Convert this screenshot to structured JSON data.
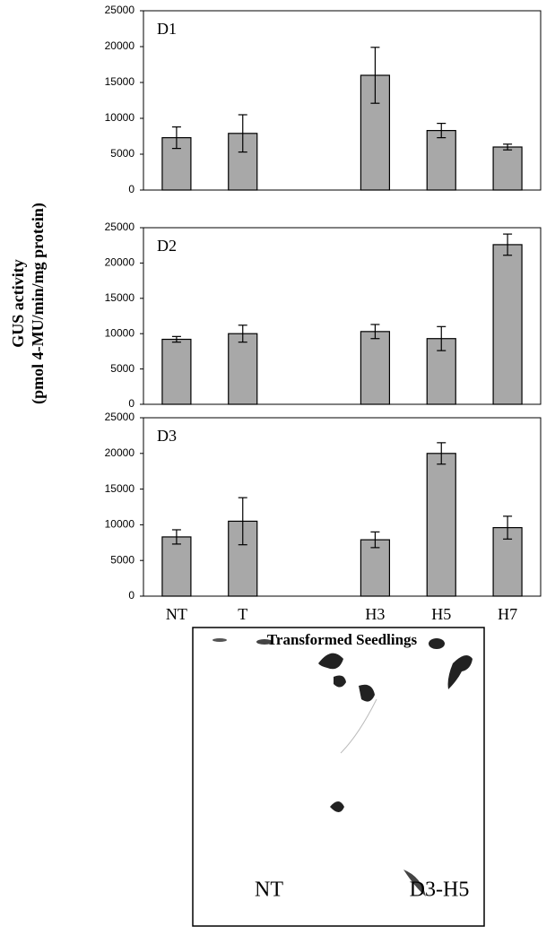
{
  "chart_data": [
    {
      "type": "bar",
      "panel_label": "D1",
      "values": [
        7300,
        7900,
        null,
        16000,
        8300,
        6000
      ],
      "errors": [
        1500,
        2600,
        null,
        3900,
        1000,
        400
      ],
      "color": "#a8a8a8",
      "ylim": [
        0,
        25000
      ],
      "yticks": [
        0,
        5000,
        10000,
        15000,
        20000,
        25000
      ],
      "grid": false
    },
    {
      "type": "bar",
      "panel_label": "D2",
      "values": [
        9200,
        10000,
        null,
        10300,
        9300,
        22600
      ],
      "errors": [
        400,
        1200,
        null,
        1000,
        1700,
        1500
      ],
      "color": "#a8a8a8",
      "ylim": [
        0,
        25000
      ],
      "yticks": [
        0,
        5000,
        10000,
        15000,
        20000,
        25000
      ],
      "grid": false,
      "ylabel": [
        "GUS activity",
        "(pmol 4-MU/min/mg protein)"
      ]
    },
    {
      "type": "bar",
      "panel_label": "D3",
      "categories": [
        "NT",
        "T",
        null,
        "H3",
        "H5",
        "H7"
      ],
      "values": [
        8300,
        10500,
        null,
        7900,
        20000,
        9600
      ],
      "errors": [
        1000,
        3300,
        null,
        1100,
        1500,
        1600
      ],
      "color": "#a8a8a8",
      "ylim": [
        0,
        25000
      ],
      "yticks": [
        0,
        5000,
        10000,
        15000,
        20000,
        25000
      ],
      "grid": false,
      "xlabel": "Transformed Seedlings"
    }
  ],
  "photo": {
    "labels": [
      "NT",
      "D3-H5"
    ]
  }
}
